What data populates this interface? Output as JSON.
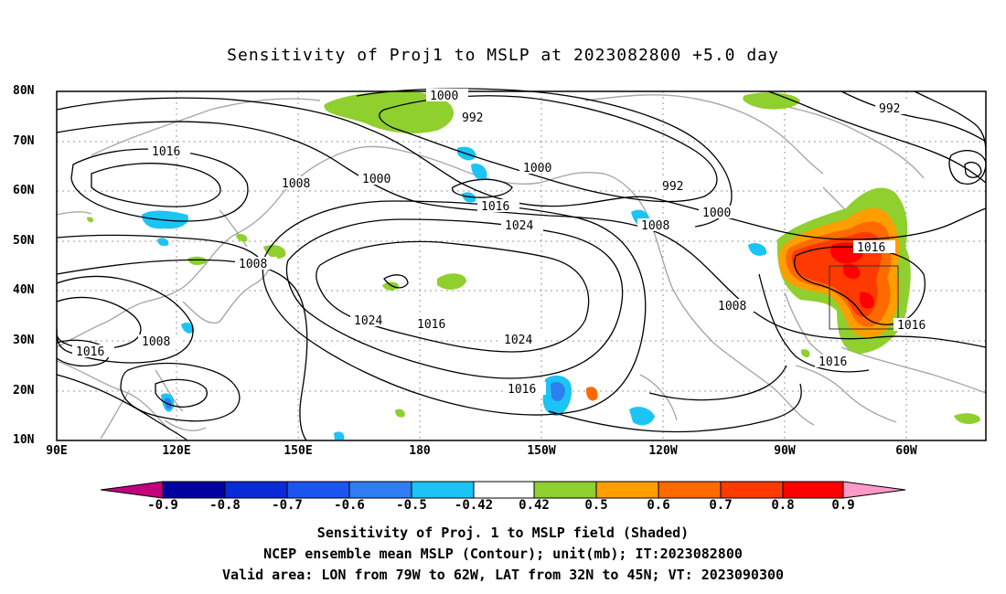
{
  "title": "Sensitivity of Proj1 to MSLP at 2023082800 +5.0 day",
  "lat_labels": [
    "80N",
    "70N",
    "60N",
    "50N",
    "40N",
    "30N",
    "20N",
    "10N"
  ],
  "lon_labels": [
    "90E",
    "120E",
    "150E",
    "180",
    "150W",
    "120W",
    "90W",
    "60W"
  ],
  "contour_labels": [
    "1000",
    "992",
    "1016",
    "1008",
    "1000",
    "1000",
    "992",
    "1016",
    "1024",
    "1008",
    "1000",
    "1008",
    "1016",
    "1008",
    "1024",
    "1016",
    "1024",
    "1016",
    "1008",
    "1016",
    "1016",
    "1016",
    "992"
  ],
  "colorbar": {
    "labels": [
      "-0.9",
      "-0.8",
      "-0.7",
      "-0.6",
      "-0.5",
      "-0.42",
      "0.42",
      "0.5",
      "0.6",
      "0.7",
      "0.8",
      "0.9"
    ],
    "colors": [
      "#c4007c",
      "#0000a0",
      "#0a2bd8",
      "#1d55f0",
      "#2f7df2",
      "#1bc4f5",
      "#ffffff",
      "#8fcf2e",
      "#ff9e00",
      "#ff6a00",
      "#ff3a00",
      "#ff0000",
      "#ff9ac8"
    ]
  },
  "footer": {
    "line1": "Sensitivity of Proj. 1 to MSLP field (Shaded)",
    "line2": "NCEP ensemble mean MSLP (Contour); unit(mb); IT:2023082800",
    "line3": "Valid area: LON from 79W to 62W, LAT from 32N to 45N; VT: 2023090300"
  }
}
